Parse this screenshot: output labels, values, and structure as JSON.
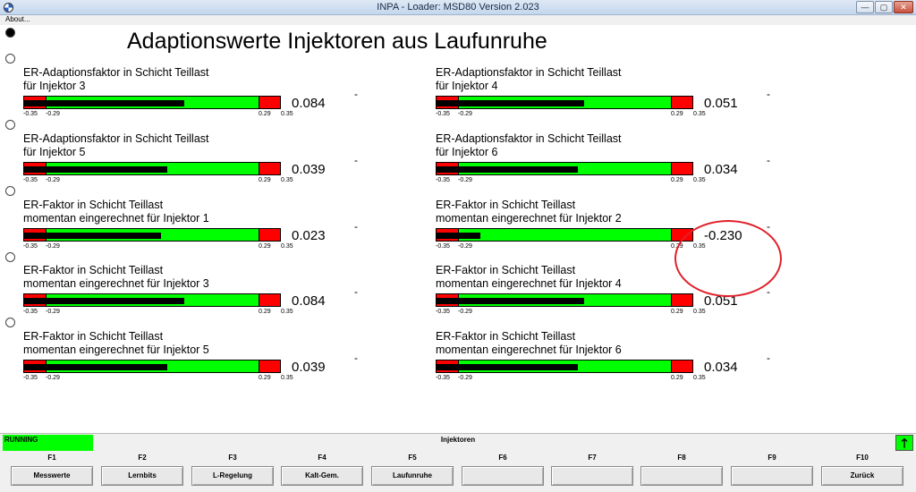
{
  "window": {
    "title": "INPA - Loader:  MSD80 Version 2.023",
    "min": "—",
    "max": "▢",
    "close": "✕"
  },
  "menu": {
    "about": "About..."
  },
  "page_title": "Adaptionswerte Injektoren aus Laufunruhe",
  "ticks": {
    "min": "-0.35",
    "lo": "-0.29",
    "hi": "0.29",
    "max": "0.35"
  },
  "blocks": [
    {
      "l1": "ER-Adaptionsfaktor in Schicht Teillast",
      "l2": "für Injektor 3",
      "value": "0.084",
      "unit": "-",
      "num": 0.084
    },
    {
      "l1": "ER-Adaptionsfaktor in Schicht Teillast",
      "l2": "für Injektor 4",
      "value": "0.051",
      "unit": "-",
      "num": 0.051
    },
    {
      "l1": "ER-Adaptionsfaktor in Schicht Teillast",
      "l2": "für Injektor 5",
      "value": "0.039",
      "unit": "-",
      "num": 0.039
    },
    {
      "l1": "ER-Adaptionsfaktor in Schicht Teillast",
      "l2": "für Injektor 6",
      "value": "0.034",
      "unit": "-",
      "num": 0.034
    },
    {
      "l1": "ER-Faktor in Schicht Teillast",
      "l2": "momentan eingerechnet für Injektor 1",
      "value": "0.023",
      "unit": "-",
      "num": 0.023
    },
    {
      "l1": "ER-Faktor in Schicht Teillast",
      "l2": "momentan eingerechnet für Injektor 2",
      "value": "-0.230",
      "unit": "-",
      "num": -0.23
    },
    {
      "l1": "ER-Faktor in Schicht Teillast",
      "l2": "momentan eingerechnet für Injektor 3",
      "value": "0.084",
      "unit": "-",
      "num": 0.084
    },
    {
      "l1": "ER-Faktor in Schicht Teillast",
      "l2": "momentan eingerechnet für Injektor 4",
      "value": "0.051",
      "unit": "-",
      "num": 0.051
    },
    {
      "l1": "ER-Faktor in Schicht Teillast",
      "l2": "momentan eingerechnet für Injektor 5",
      "value": "0.039",
      "unit": "-",
      "num": 0.039
    },
    {
      "l1": "ER-Faktor in Schicht Teillast",
      "l2": "momentan eingerechnet für Injektor 6",
      "value": "0.034",
      "unit": "-",
      "num": 0.034
    }
  ],
  "status": {
    "running": "RUNNING",
    "section": "Injektoren",
    "arrow": "🡑"
  },
  "fkeys": [
    {
      "key": "F1",
      "label": "Messwerte"
    },
    {
      "key": "F2",
      "label": "Lernbits"
    },
    {
      "key": "F3",
      "label": "L-Regelung"
    },
    {
      "key": "F4",
      "label": "Kalt-Gem."
    },
    {
      "key": "F5",
      "label": "Laufunruhe"
    },
    {
      "key": "F6",
      "label": ""
    },
    {
      "key": "F7",
      "label": ""
    },
    {
      "key": "F8",
      "label": ""
    },
    {
      "key": "F9",
      "label": ""
    },
    {
      "key": "F10",
      "label": "Zurück"
    }
  ],
  "colors": {
    "bar_ok": "#00ff00",
    "bar_limit": "#ff0000",
    "highlight": "#e0202a"
  }
}
